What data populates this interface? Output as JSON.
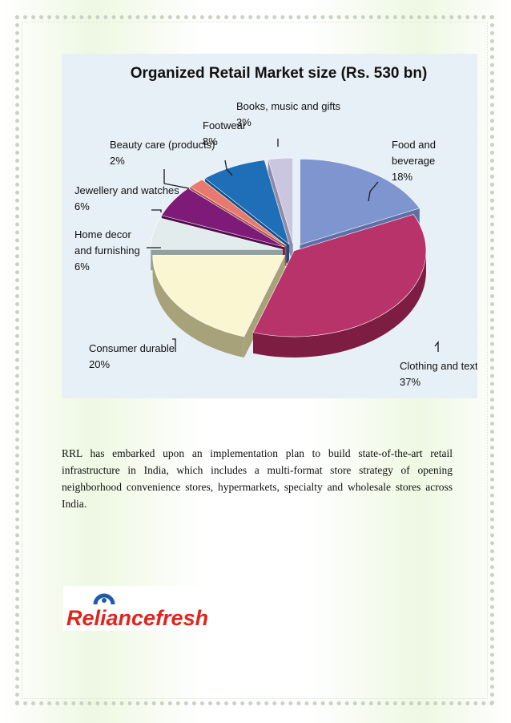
{
  "chart_data": {
    "type": "pie",
    "title": "Organized Retail Market size (Rs. 530 bn)",
    "slices": [
      {
        "name": "Food and beverage",
        "value": 18,
        "label_lines": [
          "Food and",
          "beverage",
          "18%"
        ],
        "color": "#7f95cf",
        "dark": "#5d6fa6",
        "explode": 1
      },
      {
        "name": "Clothing and textile",
        "value": 37,
        "label_lines": [
          "Clothing and textile",
          "37%"
        ],
        "color": "#b8336a",
        "dark": "#7d1d42",
        "explode": 0
      },
      {
        "name": "Consumer durable",
        "value": 20,
        "label_lines": [
          "Consumer durable",
          "20%"
        ],
        "color": "#fbf6d2",
        "dark": "#a7a27a",
        "explode": 1
      },
      {
        "name": "Home decor and furnishing",
        "value": 6,
        "label_lines": [
          "Home decor",
          "and furnishing",
          "6%"
        ],
        "color": "#e3ecec",
        "dark": "#93a0a0",
        "explode": 1
      },
      {
        "name": "Jewellery and watches",
        "value": 6,
        "label_lines": [
          "Jewellery and watches",
          "6%"
        ],
        "color": "#7e1a78",
        "dark": "#4e0f4a",
        "explode": 1
      },
      {
        "name": "Beauty care (products)",
        "value": 2,
        "label_lines": [
          "Beauty care (products)",
          "2%"
        ],
        "color": "#e9796f",
        "dark": "#a64f48",
        "explode": 1
      },
      {
        "name": "Footwear",
        "value": 8,
        "label_lines": [
          "Footwear",
          "8%"
        ],
        "color": "#1f6fb8",
        "dark": "#164e83",
        "explode": 1
      },
      {
        "name": "Books, music and gifts",
        "value": 3,
        "label_lines": [
          "Books, music and gifts",
          "3%"
        ],
        "color": "#cbc6e0",
        "dark": "#8e8aa8",
        "explode": 1
      }
    ]
  },
  "paragraph": "RRL has embarked upon an implementation plan to build state-of-the-art retail infrastructure in India, which includes a multi-format store strategy of opening neighborhood convenience stores, hypermarkets, specialty and wholesale stores across India.",
  "logo": {
    "part1": "Reliance",
    "part2": "fresh",
    "color1": "#e2231a",
    "color2": "#e2231a",
    "mark_color": "#1f5ba8"
  }
}
